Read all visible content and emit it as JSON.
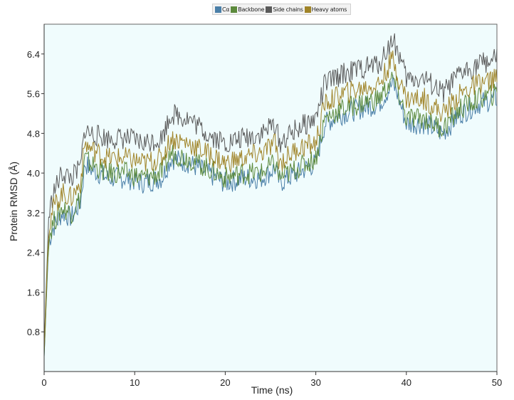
{
  "chart_data": {
    "type": "line",
    "title": "",
    "xlabel": "Time (ns)",
    "ylabel": "Protein RMSD (Å)",
    "xlim": [
      0,
      50
    ],
    "ylim": [
      0,
      7.0
    ],
    "x_ticks": [
      "0",
      "10",
      "20",
      "30",
      "40",
      "50"
    ],
    "y_ticks": [
      "0.8",
      "1.6",
      "2.4",
      "3.2",
      "4.0",
      "4.8",
      "5.6",
      "6.4"
    ],
    "grid": false,
    "legend_position": "top-center",
    "legend": [
      "Cα",
      "Backbone",
      "Side chains",
      "Heavy atoms"
    ],
    "series": [
      {
        "name": "Cα",
        "color": "#4a7fa8",
        "x": [
          0,
          0.5,
          1,
          2,
          3,
          4,
          4.5,
          5,
          7,
          9,
          11,
          13,
          14,
          16,
          18,
          20,
          22,
          24,
          25.5,
          26,
          28,
          30,
          31,
          33,
          35,
          37,
          38.5,
          39,
          40,
          42,
          44,
          46,
          48,
          50
        ],
        "values": [
          0.3,
          2.6,
          2.9,
          3.2,
          3.1,
          3.4,
          4.2,
          4.1,
          3.9,
          3.9,
          3.8,
          3.9,
          4.3,
          4.2,
          4.0,
          3.8,
          3.9,
          3.9,
          4.1,
          3.8,
          4.0,
          4.2,
          5.0,
          5.2,
          5.3,
          5.4,
          5.8,
          5.6,
          5.0,
          5.0,
          4.8,
          5.2,
          5.4,
          5.5
        ]
      },
      {
        "name": "Backbone",
        "color": "#5c8a3c",
        "x": [
          0,
          0.5,
          1,
          2,
          3,
          4,
          4.5,
          5,
          7,
          9,
          11,
          13,
          14,
          16,
          18,
          20,
          22,
          24,
          25.5,
          26,
          28,
          30,
          31,
          33,
          35,
          37,
          38.5,
          39,
          40,
          42,
          44,
          46,
          48,
          50
        ],
        "values": [
          0.3,
          2.7,
          3.0,
          3.3,
          3.2,
          3.5,
          4.3,
          4.2,
          4.0,
          4.0,
          3.9,
          4.0,
          4.4,
          4.3,
          4.1,
          3.9,
          4.0,
          4.0,
          4.2,
          3.9,
          4.1,
          4.3,
          5.1,
          5.3,
          5.4,
          5.5,
          5.9,
          5.7,
          5.1,
          5.1,
          4.9,
          5.3,
          5.5,
          5.6
        ]
      },
      {
        "name": "Side chains",
        "color": "#5a5a5a",
        "x": [
          0,
          0.5,
          1,
          2,
          3,
          4,
          4.5,
          5,
          7,
          9,
          11,
          13,
          14,
          16,
          18,
          20,
          22,
          24,
          25.5,
          26,
          28,
          30,
          31,
          33,
          35,
          37,
          38.5,
          39,
          40,
          42,
          44,
          46,
          48,
          50
        ],
        "values": [
          0.5,
          3.1,
          3.6,
          4.0,
          3.9,
          4.1,
          4.9,
          4.8,
          4.7,
          4.7,
          4.6,
          4.7,
          5.2,
          5.1,
          4.8,
          4.6,
          4.7,
          4.8,
          5.0,
          4.6,
          4.9,
          5.1,
          5.8,
          6.0,
          6.1,
          6.2,
          6.7,
          6.5,
          5.9,
          5.9,
          5.6,
          6.0,
          6.2,
          6.3
        ]
      },
      {
        "name": "Heavy atoms",
        "color": "#a08428",
        "x": [
          0,
          0.5,
          1,
          2,
          3,
          4,
          4.5,
          5,
          7,
          9,
          11,
          13,
          14,
          16,
          18,
          20,
          22,
          24,
          25.5,
          26,
          28,
          30,
          31,
          33,
          35,
          37,
          38.5,
          39,
          40,
          42,
          44,
          46,
          48,
          50
        ],
        "values": [
          0.4,
          2.9,
          3.3,
          3.6,
          3.5,
          3.8,
          4.6,
          4.5,
          4.3,
          4.3,
          4.2,
          4.3,
          4.7,
          4.6,
          4.4,
          4.2,
          4.3,
          4.4,
          4.6,
          4.2,
          4.5,
          4.6,
          5.4,
          5.6,
          5.7,
          5.8,
          6.3,
          6.0,
          5.5,
          5.5,
          5.2,
          5.6,
          5.8,
          5.9
        ]
      }
    ]
  }
}
